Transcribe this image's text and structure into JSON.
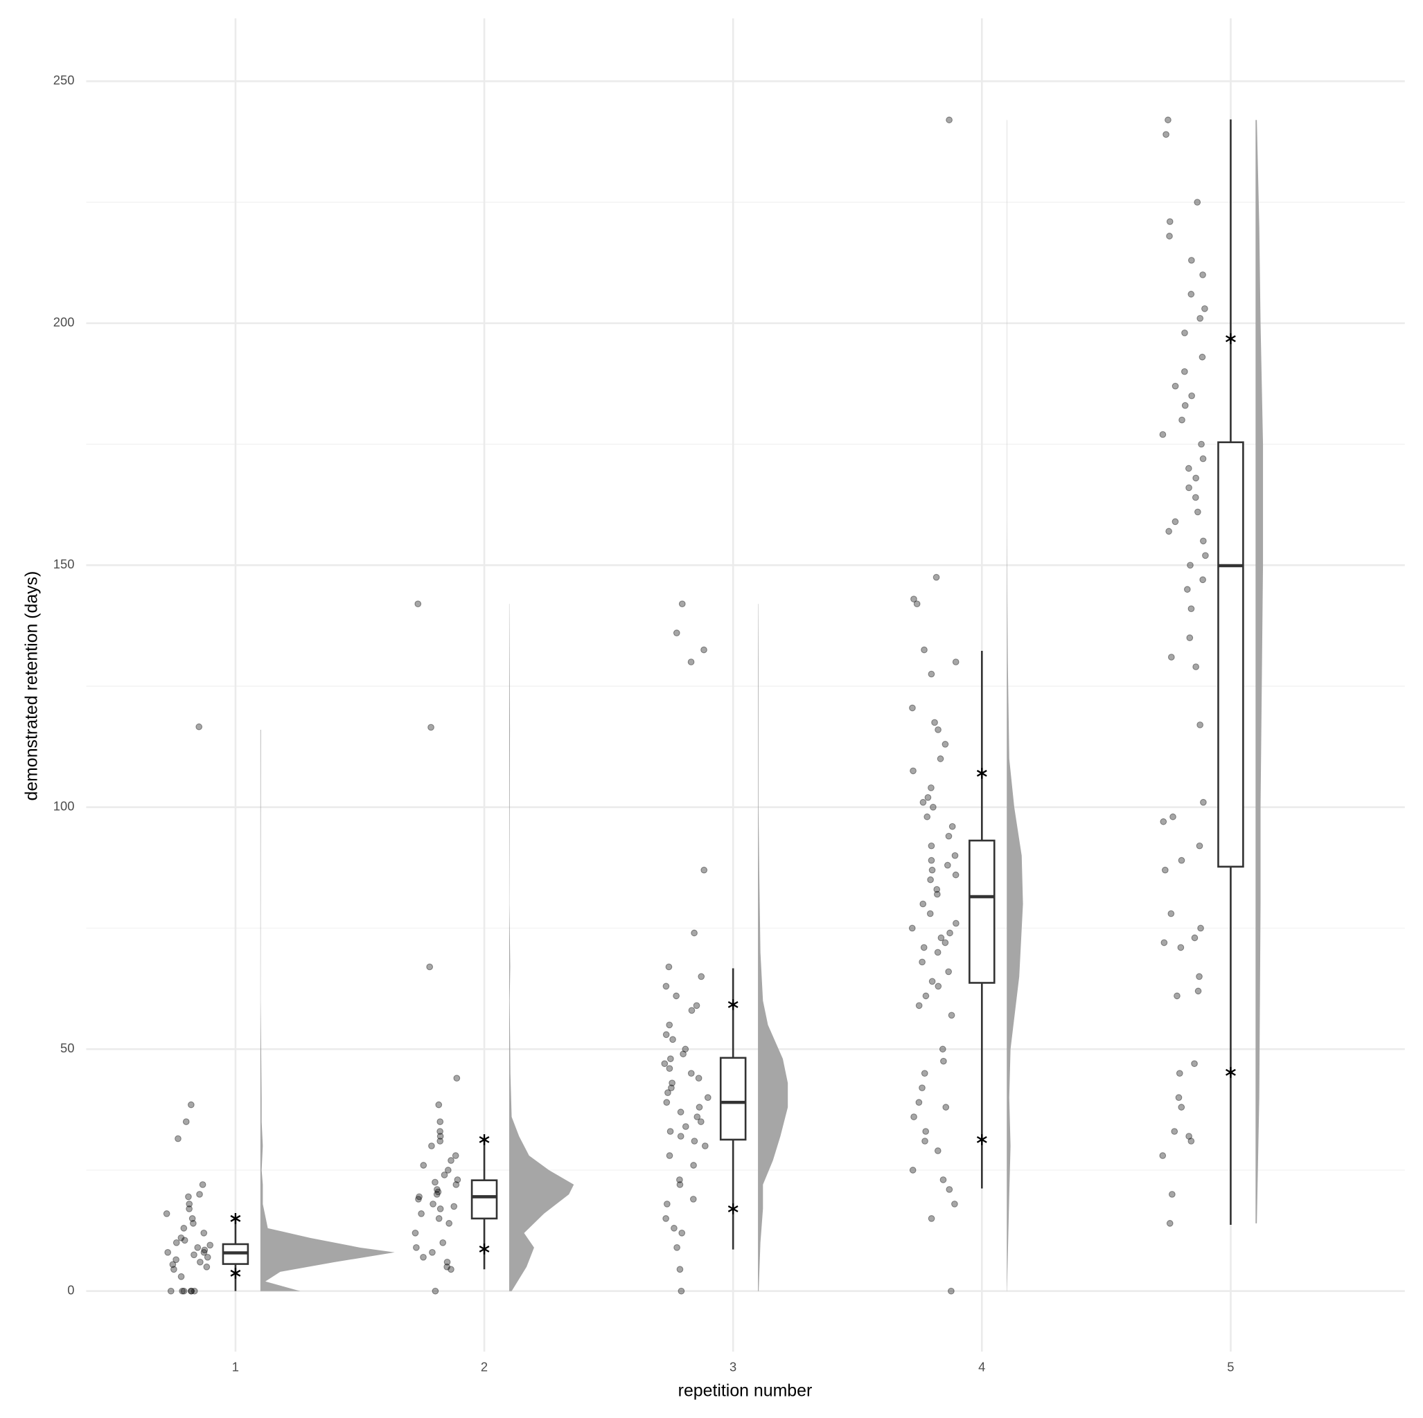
{
  "chart_data": {
    "type": "raincloud",
    "x_label": "repetition number",
    "y_label": "demonstrated retention (days)",
    "xlim": [
      0.4,
      5.7
    ],
    "xticks": [
      1,
      2,
      3,
      4,
      5
    ],
    "ylim": [
      -12.5,
      263
    ],
    "yticks": [
      0,
      50,
      100,
      150,
      200,
      250
    ],
    "y_minor_ticks": [
      25,
      75,
      125,
      175,
      225
    ],
    "grid": true,
    "point_color": "#000000",
    "density_color": "#a6a6a6",
    "box_color": "#333333",
    "groups": [
      {
        "x": 1,
        "points": [
          116.6,
          38.5,
          35,
          31.5,
          22,
          20,
          19.5,
          18,
          17,
          16,
          15,
          14,
          13,
          12,
          11,
          10.5,
          10,
          9.5,
          9,
          8.5,
          8,
          8,
          7.5,
          7,
          6.5,
          6,
          5.5,
          5,
          4.5,
          3,
          0,
          0,
          0,
          0,
          0,
          0
        ],
        "box": {
          "whisker_low": 0,
          "q1": 5.6,
          "median": 7.9,
          "q3": 9.7,
          "whisker_high": 15,
          "stars": [
            15,
            3.7
          ]
        },
        "density": {
          "y": [
            0,
            2,
            4,
            6,
            8,
            9,
            11,
            13,
            18,
            22,
            25,
            30,
            35,
            40,
            60,
            116
          ],
          "values": [
            0.16,
            0.02,
            0.08,
            0.3,
            0.54,
            0.4,
            0.2,
            0.03,
            0.01,
            0.01,
            0.005,
            0.01,
            0.005,
            0.005,
            0.001,
            0.002
          ]
        }
      },
      {
        "x": 2,
        "points": [
          142,
          116.5,
          67,
          44,
          38.5,
          35,
          33,
          32,
          31,
          30,
          28,
          27,
          26,
          25,
          24,
          23,
          22.5,
          22,
          21,
          20.5,
          20,
          19.5,
          19,
          18,
          17.5,
          17,
          16,
          15,
          14,
          12,
          10,
          9,
          8,
          7,
          6,
          5,
          4.5,
          0
        ],
        "box": {
          "whisker_low": 4.5,
          "q1": 15,
          "median": 19.5,
          "q3": 22.9,
          "whisker_high": 31.3,
          "stars": [
            31.3,
            8.7
          ]
        },
        "density": {
          "y": [
            0,
            5,
            9,
            12,
            16,
            20,
            22,
            25,
            28,
            32,
            36,
            45,
            60,
            67,
            80,
            116,
            142
          ],
          "values": [
            0.01,
            0.07,
            0.1,
            0.06,
            0.14,
            0.24,
            0.26,
            0.16,
            0.08,
            0.04,
            0.01,
            0.005,
            0.002,
            0.004,
            0.001,
            0.003,
            0.001
          ]
        }
      },
      {
        "x": 3,
        "points": [
          142,
          136,
          132.5,
          130,
          87,
          74,
          67,
          65,
          63,
          61,
          59,
          58,
          55,
          53,
          52,
          50,
          49,
          48,
          47,
          46,
          45,
          44,
          43,
          42,
          41,
          40,
          39,
          38,
          37,
          36,
          35,
          34,
          33,
          32,
          31,
          30,
          28,
          26,
          23,
          22,
          19,
          18,
          15,
          13,
          12,
          9,
          4.5,
          0
        ],
        "box": {
          "whisker_low": 8.6,
          "q1": 31.3,
          "median": 39,
          "q3": 48.2,
          "whisker_high": 66.7,
          "stars": [
            59.2,
            17
          ]
        },
        "density": {
          "y": [
            0,
            10,
            17,
            22,
            27,
            32,
            38,
            43,
            48,
            55,
            60,
            70,
            87,
            100,
            130,
            142
          ],
          "values": [
            0.003,
            0.01,
            0.02,
            0.02,
            0.06,
            0.09,
            0.12,
            0.12,
            0.1,
            0.04,
            0.02,
            0.01,
            0.005,
            0.002,
            0.002,
            0.001
          ]
        }
      },
      {
        "x": 4,
        "points": [
          242,
          147.5,
          143,
          142,
          132.5,
          130,
          127.5,
          120.5,
          117.5,
          116,
          113,
          110,
          107.5,
          104,
          102,
          101,
          100,
          98,
          96,
          94,
          92,
          90,
          89,
          88,
          87,
          86,
          85,
          83,
          82,
          80,
          78,
          76,
          75,
          74,
          73,
          72,
          71,
          70,
          68,
          66,
          64,
          63,
          61,
          59,
          57,
          50,
          47.5,
          45,
          42,
          39,
          38,
          36,
          33,
          31,
          29,
          25,
          23,
          21,
          18,
          15,
          0
        ],
        "box": {
          "whisker_low": 21.2,
          "q1": 63.7,
          "median": 81.5,
          "q3": 93.1,
          "whisker_high": 132.3,
          "stars": [
            107,
            31.3
          ]
        },
        "density": {
          "y": [
            0,
            20,
            30,
            40,
            50,
            65,
            80,
            90,
            100,
            110,
            130,
            145,
            160,
            242
          ],
          "values": [
            0.001,
            0.01,
            0.015,
            0.01,
            0.015,
            0.05,
            0.065,
            0.06,
            0.03,
            0.01,
            0.004,
            0.002,
            0.001,
            0.001
          ]
        }
      },
      {
        "x": 5,
        "points": [
          242,
          239,
          225,
          221,
          218,
          213,
          210,
          206,
          203,
          201,
          198,
          193,
          190,
          187,
          185,
          183,
          180,
          177,
          175,
          172,
          170,
          168,
          166,
          164,
          161,
          159,
          157,
          155,
          152,
          150,
          147,
          145,
          141,
          135,
          131,
          129,
          117,
          101,
          98,
          97,
          92,
          89,
          87,
          78,
          75,
          73,
          72,
          71,
          65,
          62,
          61,
          47,
          45,
          40,
          38,
          33,
          32,
          31,
          28,
          20,
          14
        ],
        "box": {
          "whisker_low": 13.7,
          "q1": 87.7,
          "median": 149.9,
          "q3": 175.4,
          "whisker_high": 242.1,
          "stars": [
            196.8,
            45.2
          ]
        },
        "density": {
          "y": [
            14,
            40,
            80,
            100,
            150,
            175,
            200,
            220,
            242
          ],
          "values": [
            0.005,
            0.015,
            0.02,
            0.02,
            0.03,
            0.03,
            0.02,
            0.015,
            0.005
          ]
        }
      }
    ]
  }
}
